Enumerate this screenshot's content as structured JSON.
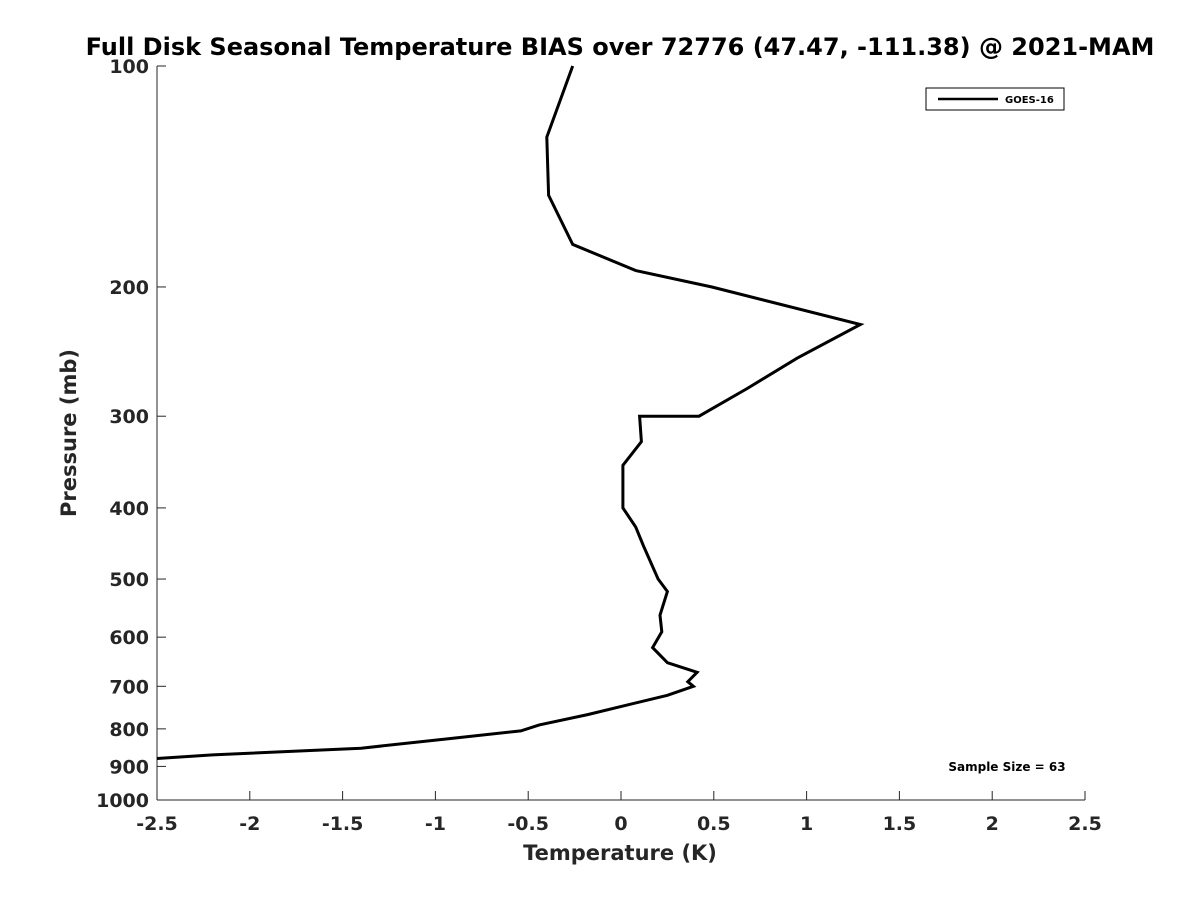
{
  "chart_data": {
    "type": "line",
    "title": "Full Disk Seasonal Temperature BIAS over 72776 (47.47, -111.38) @ 2021-MAM",
    "xlabel": "Temperature (K)",
    "ylabel": "Pressure (mb)",
    "xlim": [
      -2.5,
      2.5
    ],
    "ylim": [
      100,
      1000
    ],
    "y_scale": "log",
    "y_reversed": true,
    "x_ticks": [
      "-2.5",
      "-2",
      "-1.5",
      "-1",
      "-0.5",
      "0",
      "0.5",
      "1",
      "1.5",
      "2",
      "2.5"
    ],
    "y_ticks": [
      100,
      200,
      300,
      400,
      500,
      600,
      700,
      800,
      900,
      1000
    ],
    "y_tick_labels": [
      "100",
      "200",
      "300",
      "400",
      "500",
      "600",
      "700",
      "800",
      "900",
      "1000"
    ],
    "legend": {
      "position": "top-right"
    },
    "annotation": "Sample Size = 63",
    "series": [
      {
        "name": "GOES-16",
        "color": "#000000",
        "points": [
          {
            "t": -0.26,
            "p": 100
          },
          {
            "t": -0.4,
            "p": 125
          },
          {
            "t": -0.39,
            "p": 150
          },
          {
            "t": -0.26,
            "p": 175
          },
          {
            "t": 0.08,
            "p": 190
          },
          {
            "t": 0.49,
            "p": 200
          },
          {
            "t": 1.29,
            "p": 225
          },
          {
            "t": 0.95,
            "p": 250
          },
          {
            "t": 0.68,
            "p": 275
          },
          {
            "t": 0.42,
            "p": 300
          },
          {
            "t": 0.1,
            "p": 300
          },
          {
            "t": 0.11,
            "p": 325
          },
          {
            "t": 0.01,
            "p": 350
          },
          {
            "t": 0.01,
            "p": 400
          },
          {
            "t": 0.08,
            "p": 425
          },
          {
            "t": 0.12,
            "p": 450
          },
          {
            "t": 0.2,
            "p": 500
          },
          {
            "t": 0.25,
            "p": 520
          },
          {
            "t": 0.21,
            "p": 560
          },
          {
            "t": 0.22,
            "p": 590
          },
          {
            "t": 0.17,
            "p": 620
          },
          {
            "t": 0.25,
            "p": 650
          },
          {
            "t": 0.41,
            "p": 670
          },
          {
            "t": 0.36,
            "p": 690
          },
          {
            "t": 0.39,
            "p": 700
          },
          {
            "t": 0.25,
            "p": 720
          },
          {
            "t": -0.18,
            "p": 765
          },
          {
            "t": -0.44,
            "p": 790
          },
          {
            "t": -0.54,
            "p": 805
          },
          {
            "t": -0.93,
            "p": 825
          },
          {
            "t": -1.4,
            "p": 850
          },
          {
            "t": -2.2,
            "p": 868
          },
          {
            "t": -2.5,
            "p": 878
          }
        ]
      }
    ]
  }
}
